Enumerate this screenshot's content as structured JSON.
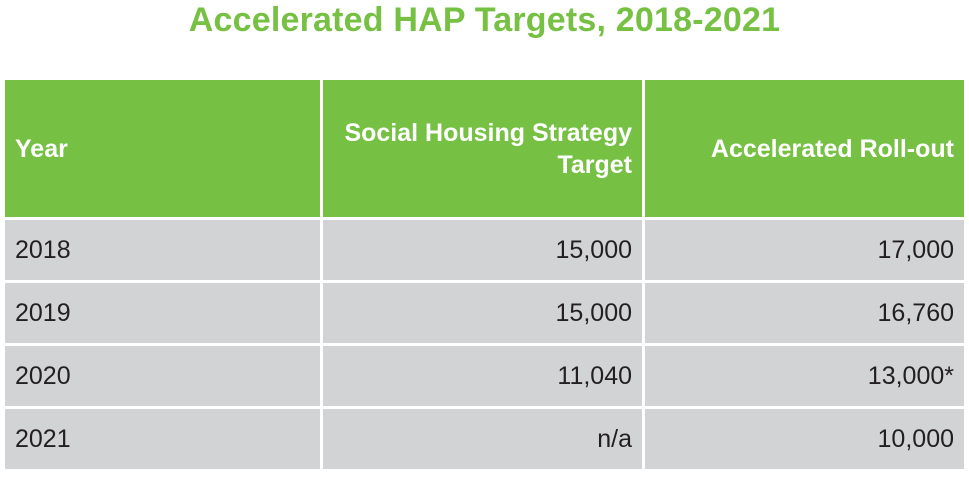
{
  "title": "Accelerated HAP Targets, 2018-2021",
  "chart_data": {
    "type": "table",
    "title": "Accelerated HAP Targets, 2018-2021",
    "columns": [
      "Year",
      "Social Housing Strategy Target",
      "Accelerated Roll-out"
    ],
    "rows": [
      {
        "year": "2018",
        "strategy_target": "15,000",
        "accelerated_rollout": "17,000"
      },
      {
        "year": "2019",
        "strategy_target": "15,000",
        "accelerated_rollout": "16,760"
      },
      {
        "year": "2020",
        "strategy_target": "11,040",
        "accelerated_rollout": "13,000*"
      },
      {
        "year": "2021",
        "strategy_target": "n/a",
        "accelerated_rollout": "10,000"
      }
    ]
  },
  "colors": {
    "header_green": "#76c043",
    "title_green": "#76c043",
    "row_gray": "#d2d3d5",
    "text_dark": "#231f20"
  }
}
